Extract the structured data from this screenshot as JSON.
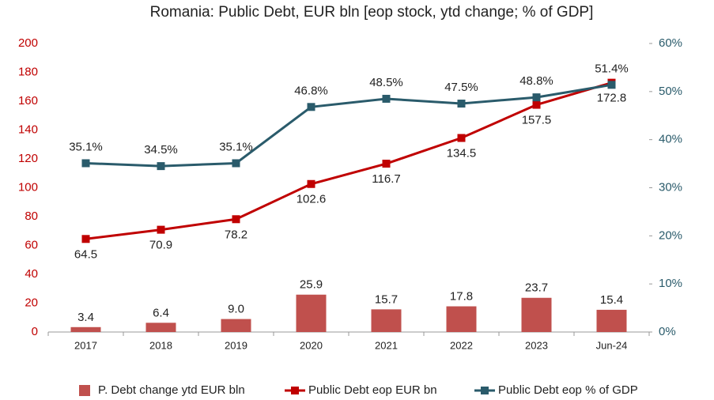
{
  "chart_data": {
    "type": "bar",
    "title": "Romania: Public Debt, EUR bln [eop stock, ytd change; % of GDP]",
    "categories": [
      "2017",
      "2018",
      "2019",
      "2020",
      "2021",
      "2022",
      "2023",
      "Jun-24"
    ],
    "series": [
      {
        "name": "P. Debt change ytd EUR bln",
        "type": "bar",
        "color": "#c0504d",
        "values": [
          3.4,
          6.4,
          9.0,
          25.9,
          15.7,
          17.8,
          23.7,
          15.4
        ],
        "value_labels": [
          "3.4",
          "6.4",
          "9.0",
          "25.9",
          "15.7",
          "17.8",
          "23.7",
          "15.4"
        ]
      },
      {
        "name": "Public Debt eop EUR bn",
        "type": "line",
        "color": "#c00000",
        "values": [
          64.5,
          70.9,
          78.2,
          102.6,
          116.7,
          134.5,
          157.5,
          172.8
        ],
        "value_labels": [
          "64.5",
          "70.9",
          "78.2",
          "102.6",
          "116.7",
          "134.5",
          "157.5",
          "172.8"
        ]
      },
      {
        "name": "Public Debt eop % of GDP",
        "type": "line",
        "axis": "y2",
        "color": "#2a5b6b",
        "values": [
          35.1,
          34.5,
          35.1,
          46.8,
          48.5,
          47.5,
          48.8,
          51.4
        ],
        "value_labels": [
          "35.1%",
          "34.5%",
          "35.1%",
          "46.8%",
          "48.5%",
          "47.5%",
          "48.8%",
          "51.4%"
        ]
      }
    ],
    "ylim": [
      0,
      200
    ],
    "yticks": [
      0,
      20,
      40,
      60,
      80,
      100,
      120,
      140,
      160,
      180,
      200
    ],
    "y2lim": [
      0,
      60
    ],
    "y2ticks": [
      {
        "value": 0,
        "label": "0%"
      },
      {
        "value": 10,
        "label": "10%"
      },
      {
        "value": 20,
        "label": "20%"
      },
      {
        "value": 30,
        "label": "30%"
      },
      {
        "value": 40,
        "label": "40%"
      },
      {
        "value": 50,
        "label": "50%"
      },
      {
        "value": 60,
        "label": "60%"
      }
    ],
    "ytick_color": "#c00000",
    "y2tick_color": "#2a5b6b",
    "grid": false,
    "legend": "bottom"
  }
}
